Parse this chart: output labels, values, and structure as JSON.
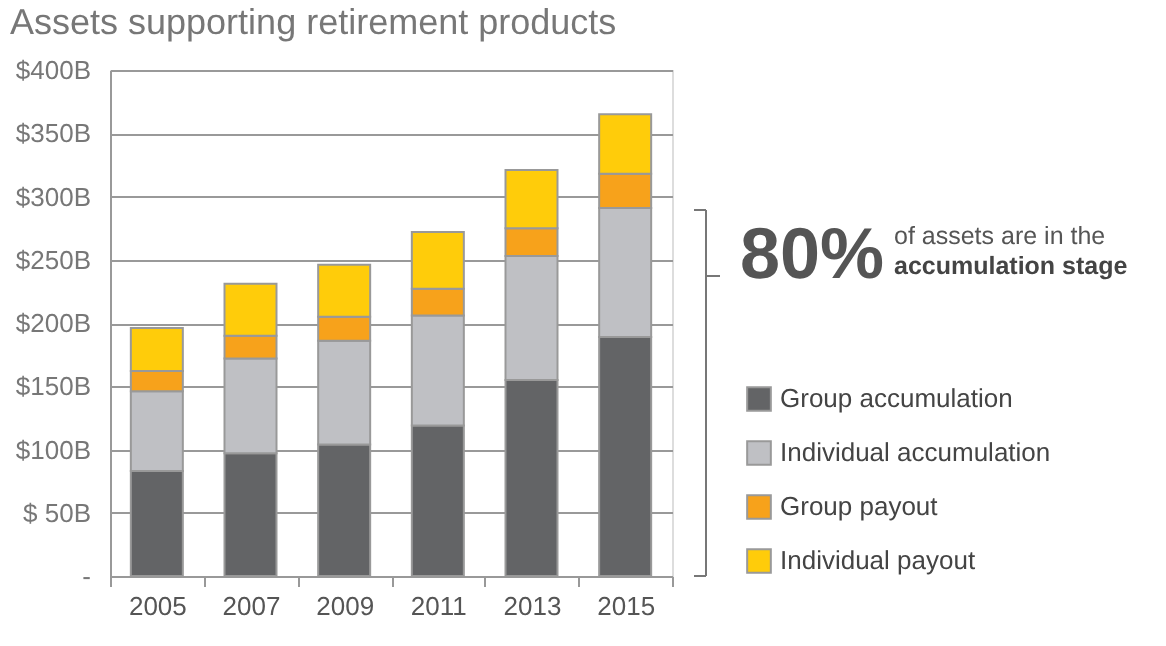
{
  "chart_data": {
    "type": "bar",
    "title": "Assets supporting retirement products",
    "stacked": true,
    "categories": [
      "2005",
      "2007",
      "2009",
      "2011",
      "2013",
      "2015"
    ],
    "series": [
      {
        "name": "Group accumulation",
        "color": "#636466",
        "values": [
          83,
          97,
          104,
          119,
          155,
          189
        ]
      },
      {
        "name": "Individual accumulation",
        "color": "#bfc0c4",
        "values": [
          63,
          75,
          82,
          87,
          98,
          102
        ]
      },
      {
        "name": "Group payout",
        "color": "#f7a21b",
        "values": [
          16,
          18,
          19,
          21,
          22,
          27
        ]
      },
      {
        "name": "Individual payout",
        "color": "#ffcc0a",
        "values": [
          34,
          41,
          41,
          45,
          46,
          47
        ]
      }
    ],
    "ylim": [
      0,
      400
    ],
    "yticks": [
      {
        "value": 0,
        "label": "-"
      },
      {
        "value": 50,
        "label": "$ 50B"
      },
      {
        "value": 100,
        "label": "$100B"
      },
      {
        "value": 150,
        "label": "$150B"
      },
      {
        "value": 200,
        "label": "$200B"
      },
      {
        "value": 250,
        "label": "$250B"
      },
      {
        "value": 300,
        "label": "$300B"
      },
      {
        "value": 350,
        "label": "$350B"
      },
      {
        "value": 400,
        "label": "$400B"
      }
    ],
    "grid": "y",
    "legend": "right",
    "annotations": [
      "80%",
      "of assets are in the",
      "accumulation stage"
    ]
  }
}
